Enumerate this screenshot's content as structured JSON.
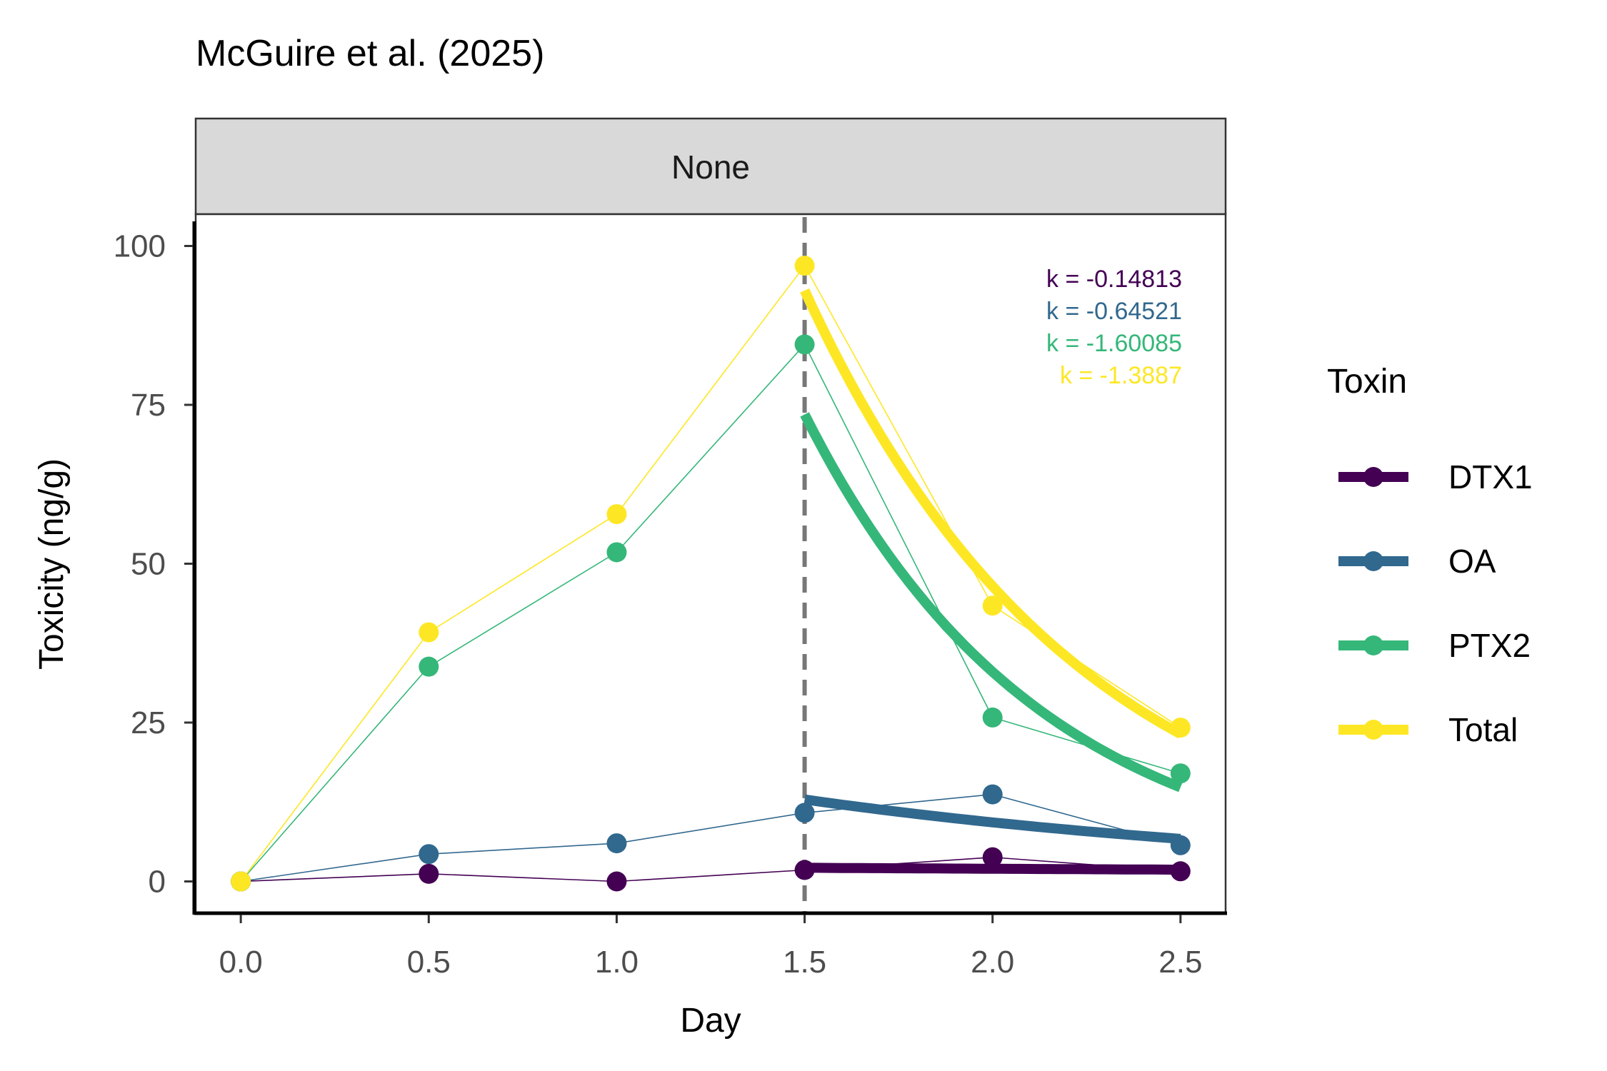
{
  "chart_data": {
    "type": "line",
    "title": "McGuire et al. (2025)",
    "facet_label": "None",
    "xlabel": "Day",
    "ylabel": "Toxicity (ng/g)",
    "xlim": [
      -0.12,
      2.62
    ],
    "ylim": [
      -5,
      105
    ],
    "x_ticks": [
      0.0,
      0.5,
      1.0,
      1.5,
      2.0,
      2.5
    ],
    "x_tick_labels": [
      "0.0",
      "0.5",
      "1.0",
      "1.5",
      "2.0",
      "2.5"
    ],
    "y_ticks": [
      0,
      25,
      50,
      75,
      100
    ],
    "y_tick_labels": [
      "0",
      "25",
      "50",
      "75",
      "100"
    ],
    "vline_x": 1.5,
    "legend_title": "Toxin",
    "legend_position": "right",
    "grid": false,
    "x": [
      0.0,
      0.5,
      1.0,
      1.5,
      2.0,
      2.5
    ],
    "series": [
      {
        "name": "DTX1",
        "color": "#440154",
        "values": [
          0,
          1.2,
          0,
          1.8,
          3.8,
          1.6
        ],
        "fit": {
          "x": [
            1.5,
            2.5
          ],
          "y": [
            2.15,
            1.85
          ]
        },
        "k_label": "k = -0.14813"
      },
      {
        "name": "OA",
        "color": "#31688E",
        "values": [
          0,
          4.3,
          6.0,
          10.8,
          13.7,
          5.7
        ],
        "fit": {
          "x": [
            1.5,
            2.5
          ],
          "y": [
            12.9,
            6.7
          ]
        },
        "k_label": "k = -0.64521"
      },
      {
        "name": "PTX2",
        "color": "#35B779",
        "values": [
          0,
          33.8,
          51.8,
          84.5,
          25.8,
          17.0
        ],
        "fit": {
          "x": [
            1.5,
            2.5
          ],
          "y": [
            73.5,
            14.8
          ]
        },
        "k_label": "k = -1.60085"
      },
      {
        "name": "Total",
        "color": "#FDE725",
        "values": [
          0,
          39.2,
          57.8,
          96.9,
          43.4,
          24.2
        ],
        "fit": {
          "x": [
            1.5,
            2.5
          ],
          "y": [
            93.0,
            23.2
          ]
        },
        "k_label": "k = -1.3887"
      }
    ]
  }
}
